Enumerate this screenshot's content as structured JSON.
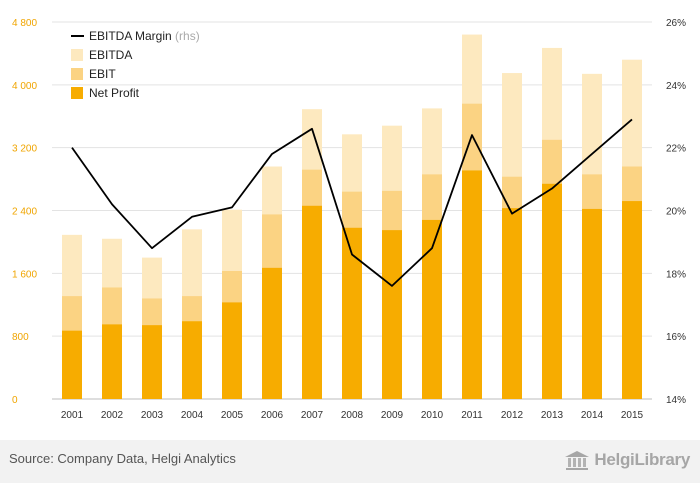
{
  "chart_data": {
    "type": "bar",
    "stacked_overlay": true,
    "categories": [
      "2001",
      "2002",
      "2003",
      "2004",
      "2005",
      "2006",
      "2007",
      "2008",
      "2009",
      "2010",
      "2011",
      "2012",
      "2013",
      "2014",
      "2015"
    ],
    "series": [
      {
        "name": "EBITDA",
        "type": "bar",
        "axis": "left",
        "color": "#fde9bf",
        "values": [
          2090,
          2040,
          1800,
          2160,
          2410,
          2960,
          3690,
          3370,
          3480,
          3700,
          4640,
          4150,
          4470,
          4140,
          4320
        ]
      },
      {
        "name": "EBIT",
        "type": "bar",
        "axis": "left",
        "color": "#fbd383",
        "values": [
          1310,
          1420,
          1280,
          1310,
          1630,
          2350,
          2920,
          2640,
          2650,
          2860,
          3760,
          2830,
          3300,
          2860,
          2960
        ]
      },
      {
        "name": "Net Profit",
        "type": "bar",
        "axis": "left",
        "color": "#f7ac00",
        "values": [
          870,
          950,
          940,
          990,
          1230,
          1670,
          2460,
          2180,
          2150,
          2280,
          2910,
          2430,
          2740,
          2420,
          2520
        ]
      },
      {
        "name": "EBITDA Margin",
        "label_suffix": "(rhs)",
        "type": "line",
        "axis": "right",
        "color": "#000000",
        "values": [
          22.0,
          20.2,
          18.8,
          19.8,
          20.1,
          21.8,
          22.6,
          18.6,
          17.6,
          18.8,
          22.4,
          19.9,
          20.7,
          21.8,
          22.9
        ]
      }
    ],
    "y_left": {
      "min": 0,
      "max": 4800,
      "ticks": [
        0,
        800,
        1600,
        2400,
        3200,
        4000,
        4800
      ],
      "tick_labels": [
        "0",
        "800",
        "1 600",
        "2 400",
        "3 200",
        "4 000",
        "4 800"
      ]
    },
    "y_right": {
      "min": 14,
      "max": 26,
      "ticks": [
        14,
        16,
        18,
        20,
        22,
        24,
        26
      ],
      "tick_labels": [
        "14%",
        "16%",
        "18%",
        "20%",
        "22%",
        "24%",
        "26%"
      ]
    },
    "grid": true,
    "legend_position": "top-left",
    "legend": [
      {
        "label": "EBITDA Margin",
        "suffix": "(rhs)",
        "kind": "line",
        "color": "#000000"
      },
      {
        "label": "EBITDA",
        "kind": "box",
        "color": "#fde9bf"
      },
      {
        "label": "EBIT",
        "kind": "box",
        "color": "#fbd383"
      },
      {
        "label": "Net Profit",
        "kind": "box",
        "color": "#f7ac00"
      }
    ],
    "left_tick_color": "#f0a500"
  },
  "footer": {
    "source": "Source: Company Data, Helgi Analytics",
    "logo_text": "HelgiLibrary"
  }
}
